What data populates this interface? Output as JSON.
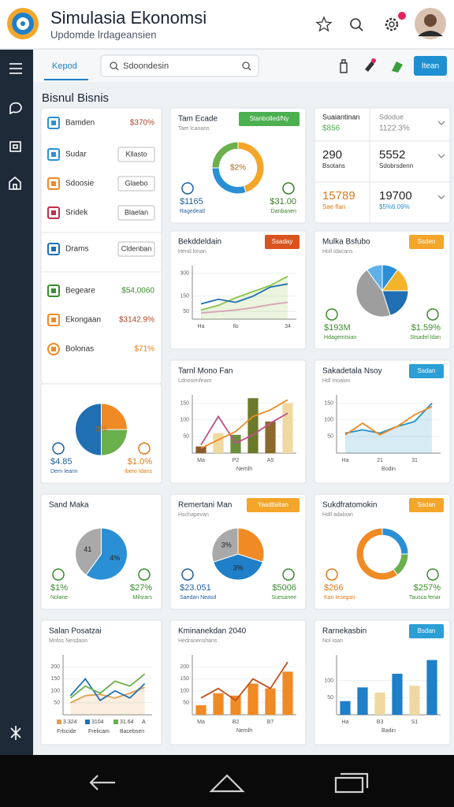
{
  "header": {
    "title": "Simulasia Ekonomsi",
    "subtitle": "Updomde lrdageansien"
  },
  "toolbar": {
    "tab": "Kepod",
    "search": "Sdoondesin",
    "button": "Itean"
  },
  "section_title": "Bisnul Bisnis",
  "list": {
    "items": [
      {
        "label": "Bamden",
        "value": "$370%",
        "color": "#2b8fd6",
        "value_color": "#b0452a"
      },
      {
        "label": "Sudar",
        "button": "Kllasto",
        "color": "#2b8fd6"
      },
      {
        "label": "Sdoosie",
        "button": "Glaebo",
        "color": "#f08a24"
      },
      {
        "label": "Sridek",
        "button": "Blaelan",
        "color": "#c0304a"
      },
      {
        "label": "Drams",
        "button": "Cldenban",
        "color": "#1f6fb2"
      },
      {
        "label": "Begeare",
        "value": "$54,0060",
        "color": "#3a8d2c",
        "value_color": "#3a8d2c"
      },
      {
        "label": "Ekongaan",
        "value": "$3142.9%",
        "color": "#f08a24",
        "value_color": "#b0452a"
      },
      {
        "label": "Bolonas",
        "value": "$71%",
        "color": "#f08a24",
        "value_color": "#e07b1a"
      }
    ]
  },
  "cards": [
    {
      "chart": {
        "type": "pie",
        "values": [
          25,
          25,
          50
        ],
        "colors": [
          "#f08a24",
          "#6ab04c",
          "#1f6fb2"
        ],
        "center": "3%"
      },
      "stats": [
        {
          "value": "$4.85",
          "caption": "Dern Ieann",
          "color": "#1f5f9e"
        },
        {
          "value": "$1.0%",
          "caption": "Ibero Idans",
          "color": "#e07b1a"
        }
      ]
    },
    {
      "title": "Tam Ecade",
      "subtitle": "Taet Icanans",
      "button": {
        "text": "Stanbolled/Ny",
        "color": "#4caf50"
      },
      "chart": {
        "type": "donut",
        "values": [
          45,
          30,
          25
        ],
        "colors": [
          "#f4a62a",
          "#2b8fd6",
          "#6ab04c"
        ],
        "center": "$2%"
      },
      "stats": [
        {
          "value": "$1165",
          "caption": "Ragedeatl",
          "color": "#1f5f9e"
        },
        {
          "value": "$31.00",
          "caption": "Danbanen",
          "color": "#3a7d2c"
        }
      ]
    },
    {
      "rows": [
        [
          {
            "value": "Suaiantinan",
            "caption": "$856",
            "color": "#4caf50"
          },
          {
            "value": "Sdodue",
            "caption": "1122.3%",
            "color": "#888888"
          }
        ],
        [
          {
            "value": "290",
            "caption": "Bsotans",
            "color": "#333333"
          },
          {
            "value": "5552",
            "caption": "Sdobrsdenn",
            "color": "#333333"
          }
        ],
        [
          {
            "value": "15789",
            "caption": "Sae flan",
            "color": "#e07b1a",
            "value_color": "#e07b1a"
          },
          {
            "value": "19700",
            "caption": "$5%6.09%",
            "color": "#2b8fd6"
          }
        ]
      ]
    },
    {
      "title": "Bekddeldain",
      "subtitle": "Hend lonan",
      "button": {
        "text": "Ssaday",
        "color": "#d9531e"
      },
      "chart": {
        "type": "line",
        "ylim": [
          0,
          350
        ],
        "yticks": [
          50,
          150,
          300
        ],
        "categories": [
          "Ha",
          null,
          "Ilo",
          null,
          null,
          "34"
        ],
        "series": [
          {
            "kind": "area",
            "color": "#8bc34a",
            "values": [
              60,
              90,
              140,
              180,
              220,
              280
            ]
          },
          {
            "kind": "line",
            "color": "#d9a0b8",
            "values": [
              40,
              50,
              60,
              75,
              95,
              110
            ]
          },
          {
            "kind": "line",
            "color": "#1f6fb2",
            "values": [
              100,
              130,
              110,
              150,
              210,
              230
            ]
          }
        ]
      }
    },
    {
      "title": "Mulka Bsfubo",
      "subtitle": "Holl Idacans",
      "button": {
        "text": "Ssdeo",
        "color": "#f4a62a"
      },
      "chart": {
        "type": "pie",
        "values": [
          10,
          15,
          20,
          45,
          10
        ],
        "colors": [
          "#2b8fd6",
          "#f4b42a",
          "#1f6fb2",
          "#9e9e9e",
          "#5fb0e8"
        ]
      },
      "stats": [
        {
          "value": "$193M",
          "caption": "Hdagemtsian",
          "color": "#3a8d2c"
        },
        {
          "value": "$1.59%",
          "caption": "Stsadel ldan",
          "color": "#3a8d2c"
        }
      ]
    },
    {
      "title": "Tarnl Mono Fan",
      "subtitle": "Ldnosenfeam",
      "chart": {
        "type": "combo",
        "ylim": [
          0,
          175
        ],
        "yticks": [
          50,
          100,
          150
        ],
        "categories": [
          "Ma",
          null,
          "P2",
          null,
          "A5",
          null
        ],
        "xlabel": "Nemlh",
        "series": [
          {
            "kind": "bar",
            "colors": [
              "#8b5a2b",
              "#f0d9a0",
              "#6b8e3a",
              "#6b7a2a",
              "#8a6a2a",
              "#f0d9a0"
            ],
            "values": [
              20,
              60,
              55,
              165,
              95,
              150
            ]
          },
          {
            "kind": "line",
            "color": "#c0508a",
            "values": [
              25,
              110,
              30,
              55,
              90,
              120
            ]
          },
          {
            "kind": "line",
            "color": "#f08a24",
            "values": [
              15,
              40,
              65,
              110,
              130,
              160
            ]
          }
        ]
      }
    },
    {
      "title": "Sakadetala Nsoy",
      "subtitle": "Hdl Inoalon",
      "button": {
        "text": "Ssdan",
        "color": "#2b9fd6"
      },
      "chart": {
        "type": "line",
        "ylim": [
          0,
          175
        ],
        "yticks": [
          50,
          100,
          150
        ],
        "categories": [
          "Ha",
          null,
          "21",
          null,
          "31",
          null
        ],
        "xlabel": "Bodin",
        "series": [
          {
            "kind": "area",
            "color": "#1f8fc0",
            "values": [
              60,
              70,
              60,
              80,
              95,
              150
            ]
          },
          {
            "kind": "line",
            "color": "#f08a24",
            "values": [
              55,
              90,
              55,
              80,
              115,
              140
            ]
          }
        ]
      }
    },
    {
      "title": "Sand Maka",
      "chart": {
        "type": "pie",
        "values": [
          60,
          40
        ],
        "colors": [
          "#2b8fd6",
          "#a9a9a9"
        ],
        "labels": [
          "4%",
          "41"
        ]
      },
      "stats": [
        {
          "value": "$1%",
          "caption": "Nolane",
          "color": "#3a8d2c"
        },
        {
          "value": "$27%",
          "caption": "Milsrars",
          "color": "#3a8d2c"
        }
      ]
    },
    {
      "title": "Remertani Man",
      "subtitle": "Hschapevan",
      "button": {
        "text": "Yasdtlaltan",
        "color": "#f4a62a"
      },
      "chart": {
        "type": "pie",
        "values": [
          30,
          40,
          30
        ],
        "colors": [
          "#f08a24",
          "#1f7fc8",
          "#a9a9a9"
        ],
        "labels": [
          null,
          "3%",
          "3%"
        ]
      },
      "stats": [
        {
          "value": "$23.051",
          "caption": "Saedan Neasd",
          "color": "#1f5f9e"
        },
        {
          "value": "$5006",
          "caption": "Suesanee",
          "color": "#3a8d2c"
        }
      ]
    },
    {
      "title": "Sukdfratomokin",
      "subtitle": "Hdll adaloan",
      "button": {
        "text": "Ssdan",
        "color": "#f4a62a"
      },
      "chart": {
        "type": "donut",
        "values": [
          25,
          15,
          60
        ],
        "colors": [
          "#2b8fd6",
          "#6ab04c",
          "#f08a24"
        ]
      },
      "stats": [
        {
          "value": "$266",
          "caption": "Kan Iesegan",
          "color": "#e07b1a"
        },
        {
          "value": "$257%",
          "caption": "Tausca fenar",
          "color": "#3a8d2c"
        }
      ]
    },
    {
      "title": "Salan Posatzai",
      "subtitle": "Mnfos Nesdaon",
      "chart": {
        "type": "line",
        "ylim": [
          0,
          250
        ],
        "yticks": [
          50,
          100,
          150,
          200
        ],
        "series": [
          {
            "kind": "area",
            "name": "3.324",
            "color": "#e0a050",
            "values": [
              50,
              80,
              85,
              70,
              90,
              115
            ]
          },
          {
            "kind": "line",
            "name": "3104",
            "color": "#1f6fb2",
            "values": [
              80,
              150,
              60,
              100,
              70,
              130
            ]
          },
          {
            "kind": "line",
            "name": "31.64",
            "color": "#6ab04c",
            "values": [
              70,
              120,
              90,
              140,
              120,
              170
            ]
          }
        ],
        "legend_note": "A",
        "captions": [
          "Frlscide",
          "Frelicam",
          "Bacebsen"
        ]
      }
    },
    {
      "title": "Kminanekdan 2040",
      "subtitle": "Hedranenshans",
      "chart": {
        "type": "combo",
        "ylim": [
          0,
          250
        ],
        "yticks": [
          50,
          100,
          150,
          200
        ],
        "categories": [
          "Ma",
          null,
          "B2",
          null,
          "B7",
          null
        ],
        "xlabel": "Nemlh",
        "series": [
          {
            "kind": "bar",
            "color": "#f08a24",
            "values": [
              40,
              90,
              80,
              130,
              110,
              180
            ]
          },
          {
            "kind": "line",
            "color": "#c0501a",
            "values": [
              70,
              110,
              60,
              150,
              110,
              220
            ]
          }
        ]
      }
    },
    {
      "title": "Rarnekasbin",
      "subtitle": "Nol Ioan",
      "button": {
        "text": "Bsdan",
        "color": "#2b9fd6"
      },
      "chart": {
        "type": "bar",
        "ylim": [
          0,
          175
        ],
        "yticks": [
          50,
          100
        ],
        "categories": [
          "Ha",
          null,
          "B3",
          null,
          "S1",
          null
        ],
        "xlabel": "Badin",
        "series": [
          {
            "kind": "bar",
            "colors": [
              "#1f7fc8",
              "#1f7fc8",
              "#f0d9a0",
              "#1f7fc8",
              "#f0d9a0",
              "#1f7fc8"
            ],
            "values": [
              40,
              80,
              65,
              120,
              85,
              160
            ]
          }
        ]
      }
    }
  ]
}
